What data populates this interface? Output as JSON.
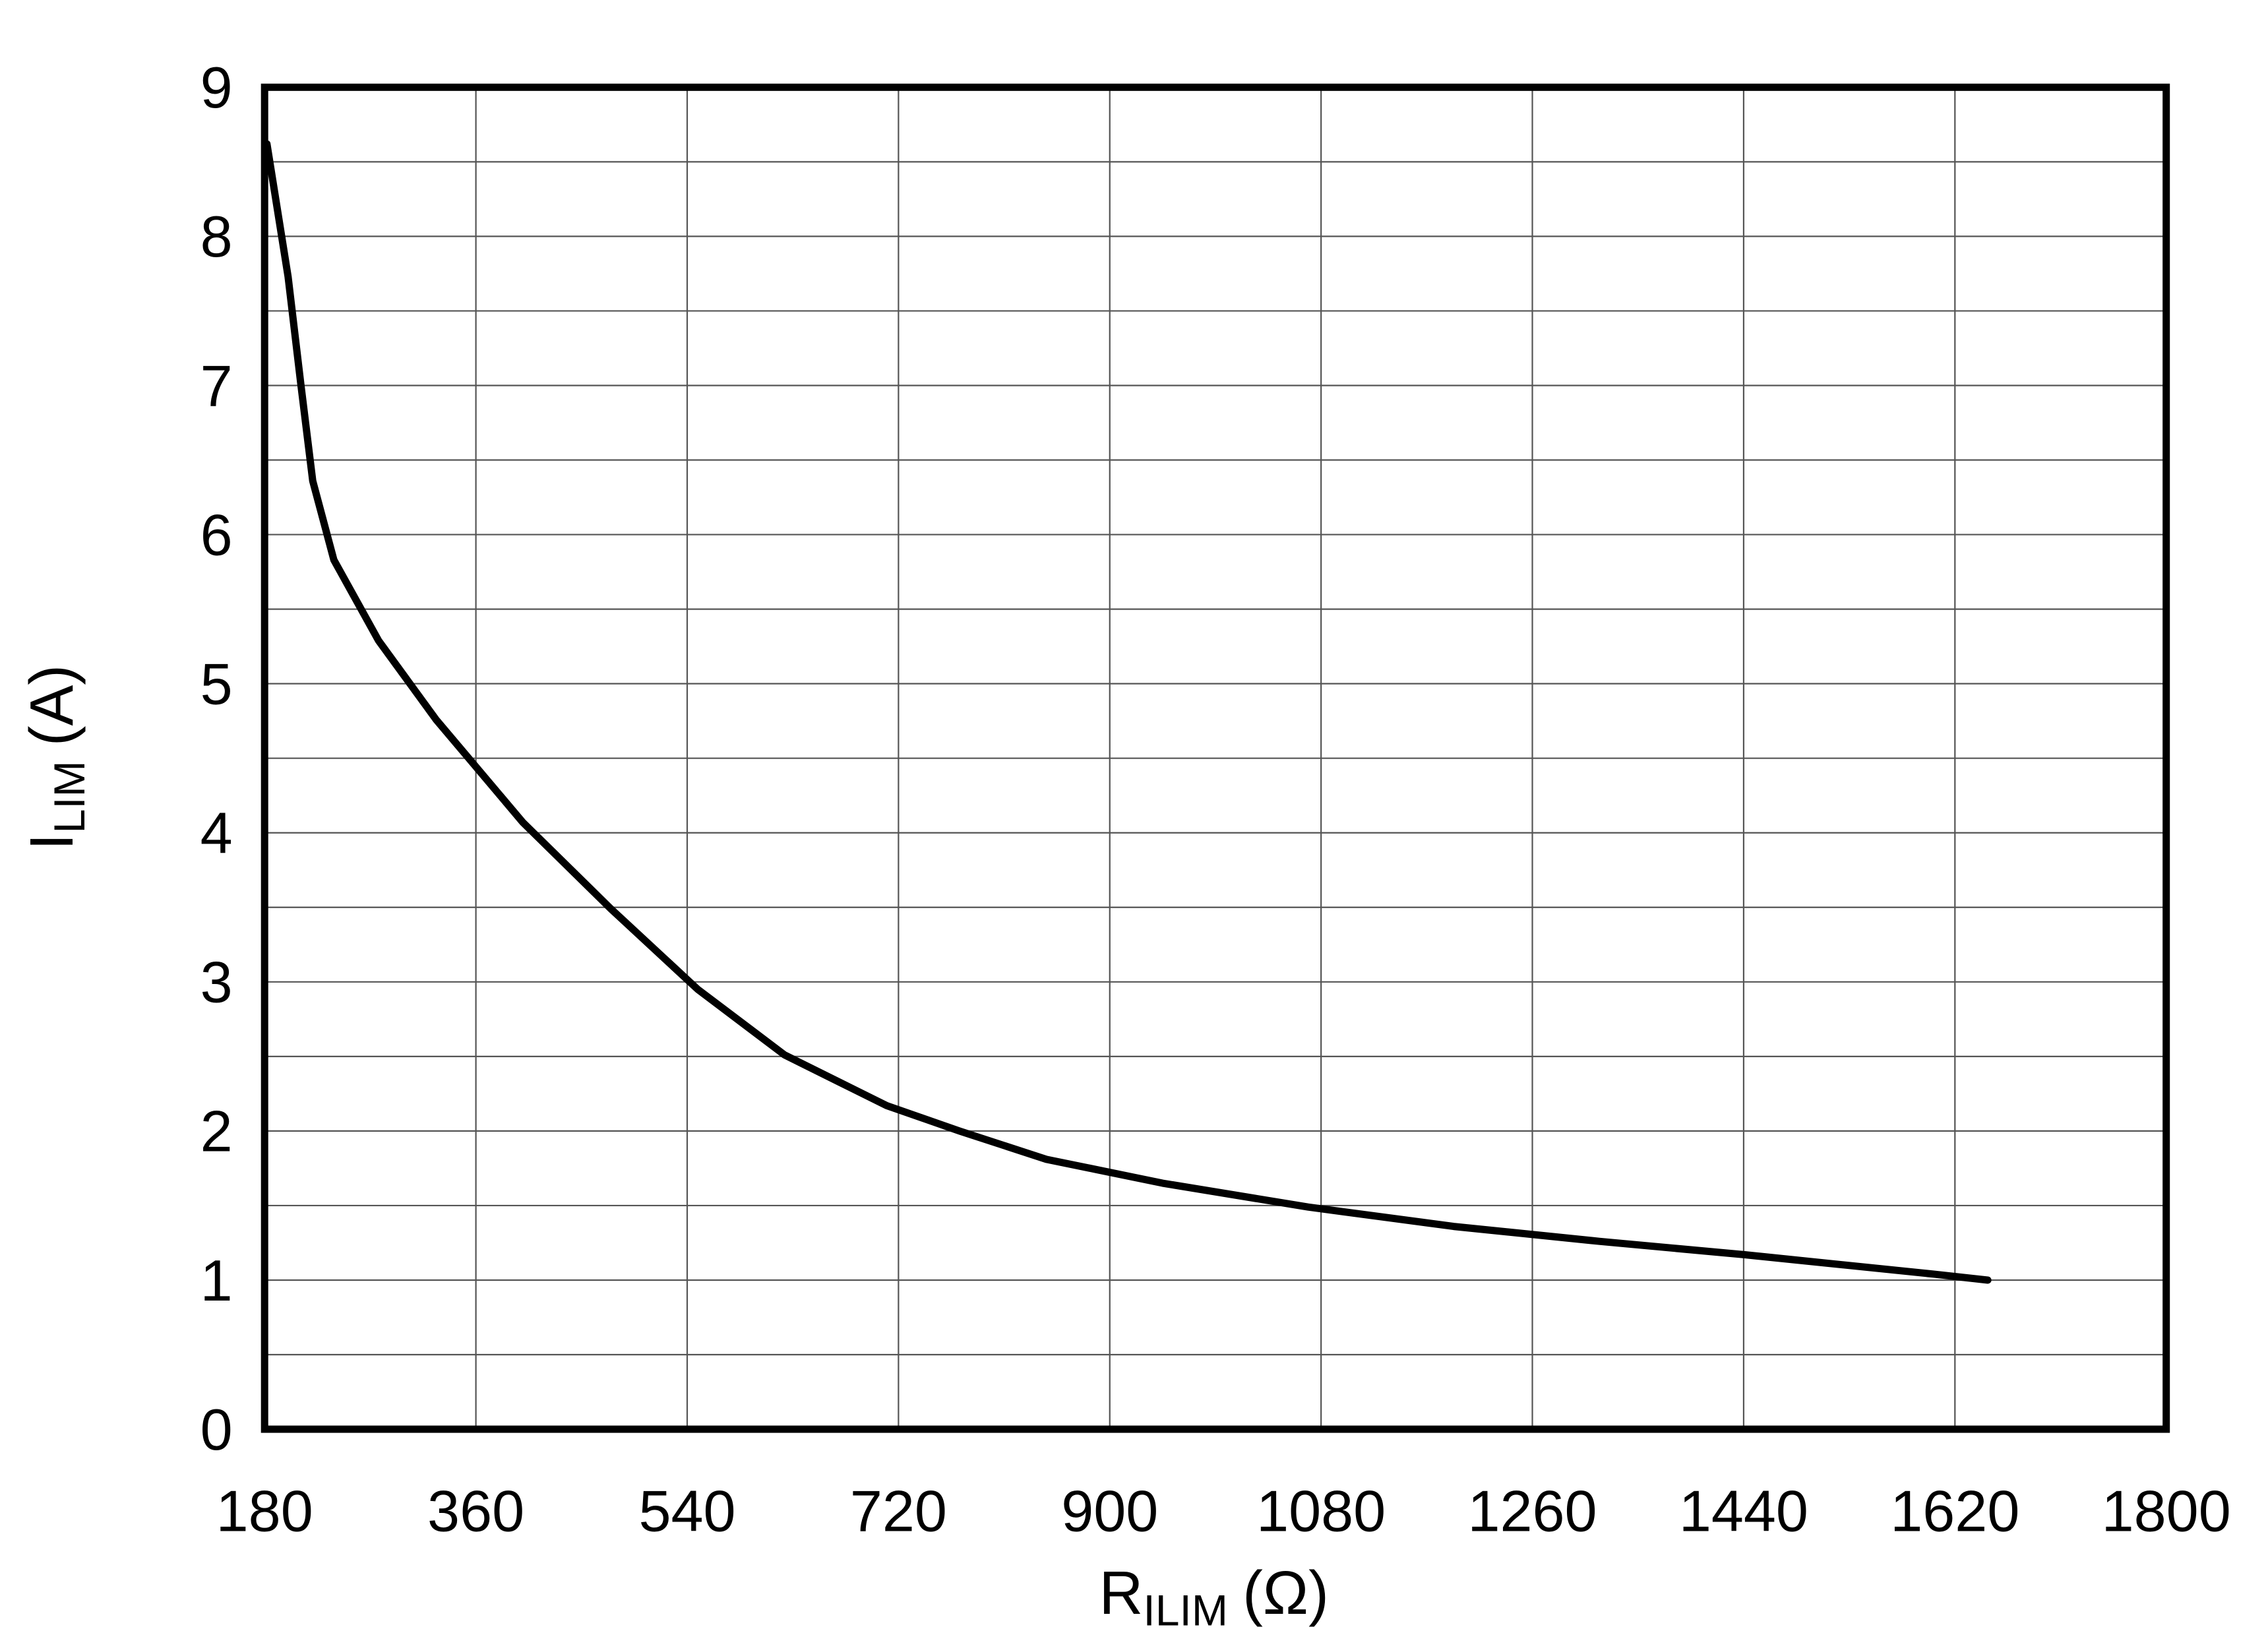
{
  "chart_data": {
    "type": "line",
    "xlabel": {
      "symbol": "R",
      "subscript": "ILIM",
      "unit": "(Ω)"
    },
    "ylabel": {
      "symbol": "I",
      "subscript": "LIM",
      "unit": "(A)"
    },
    "x": [
      182,
      200,
      211,
      221,
      239,
      277,
      326,
      400,
      475,
      549,
      623,
      710,
      772,
      846,
      945,
      1069,
      1193,
      1317,
      1441,
      1602,
      1648
    ],
    "series": [
      {
        "color": "#000000",
        "values": [
          8.62,
          7.73,
          7.0,
          6.36,
          5.83,
          5.29,
          4.76,
          4.07,
          3.49,
          2.95,
          2.51,
          2.17,
          2.0,
          1.81,
          1.65,
          1.49,
          1.36,
          1.26,
          1.17,
          1.04,
          1.0
        ]
      }
    ],
    "xlim": [
      180,
      1800
    ],
    "xticks": [
      180,
      360,
      540,
      720,
      900,
      1080,
      1260,
      1440,
      1620,
      1800
    ],
    "ylim": [
      0,
      9
    ],
    "yticks": [
      0,
      1,
      2,
      3,
      4,
      5,
      6,
      7,
      8,
      9
    ],
    "minor_yticks": [
      0.5,
      1.5,
      2.5,
      3.5,
      4.5,
      5.5,
      6.5,
      7.5,
      8.5
    ],
    "grid": true
  }
}
